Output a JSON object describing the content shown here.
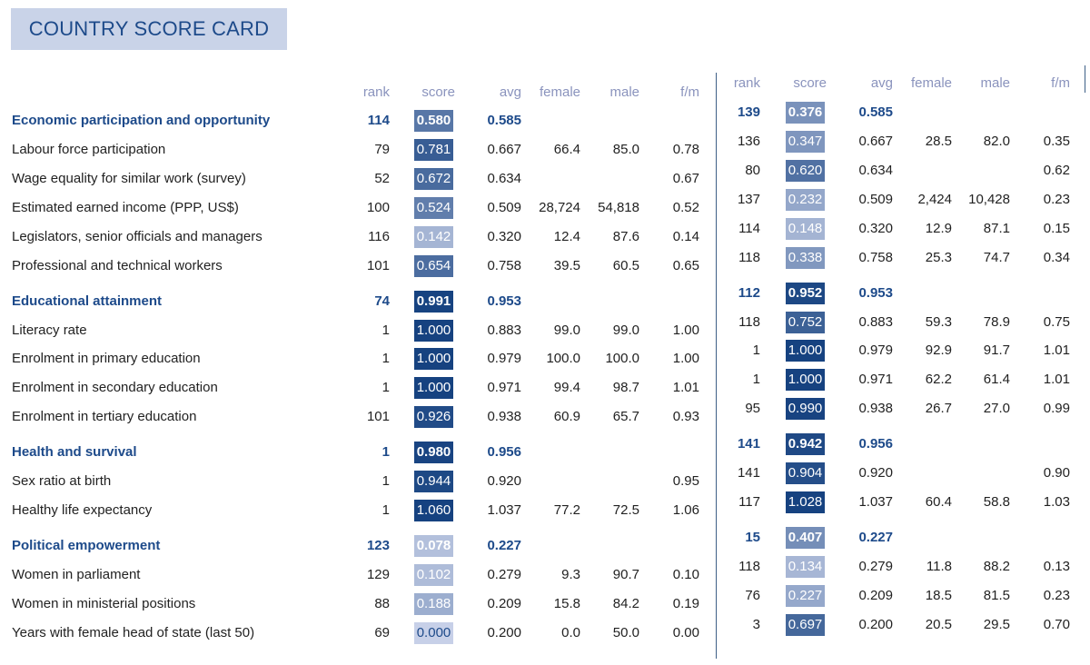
{
  "title": "COUNTRY SCORE CARD",
  "headers": {
    "left": [
      "rank",
      "score",
      "avg",
      "female",
      "male",
      "f/m"
    ],
    "right": [
      "rank",
      "score",
      "avg",
      "female",
      "male",
      "f/m"
    ]
  },
  "rows": [
    {
      "label": "Economic participation and opportunity",
      "cat": true,
      "left": {
        "rank": "114",
        "score": "0.580",
        "avg": "0.585",
        "female": "",
        "male": "",
        "fm": "",
        "level": 0.58
      },
      "right": {
        "rank": "139",
        "score": "0.376",
        "avg": "0.585",
        "female": "",
        "male": "",
        "fm": "",
        "level": 0.376
      }
    },
    {
      "label": "Labour force participation",
      "left": {
        "rank": "79",
        "score": "0.781",
        "avg": "0.667",
        "female": "66.4",
        "male": "85.0",
        "fm": "0.78",
        "level": 0.781
      },
      "right": {
        "rank": "136",
        "score": "0.347",
        "avg": "0.667",
        "female": "28.5",
        "male": "82.0",
        "fm": "0.35",
        "level": 0.347
      }
    },
    {
      "label": "Wage equality for similar work (survey)",
      "left": {
        "rank": "52",
        "score": "0.672",
        "avg": "0.634",
        "female": "",
        "male": "",
        "fm": "0.67",
        "level": 0.672
      },
      "right": {
        "rank": "80",
        "score": "0.620",
        "avg": "0.634",
        "female": "",
        "male": "",
        "fm": "0.62",
        "level": 0.62
      }
    },
    {
      "label": "Estimated earned income (PPP, US$)",
      "left": {
        "rank": "100",
        "score": "0.524",
        "avg": "0.509",
        "female": "28,724",
        "male": "54,818",
        "fm": "0.52",
        "level": 0.524
      },
      "right": {
        "rank": "137",
        "score": "0.232",
        "avg": "0.509",
        "female": "2,424",
        "male": "10,428",
        "fm": "0.23",
        "level": 0.232
      }
    },
    {
      "label": "Legislators, senior officials and managers",
      "left": {
        "rank": "116",
        "score": "0.142",
        "avg": "0.320",
        "female": "12.4",
        "male": "87.6",
        "fm": "0.14",
        "level": 0.142
      },
      "right": {
        "rank": "114",
        "score": "0.148",
        "avg": "0.320",
        "female": "12.9",
        "male": "87.1",
        "fm": "0.15",
        "level": 0.148
      }
    },
    {
      "label": "Professional and technical workers",
      "left": {
        "rank": "101",
        "score": "0.654",
        "avg": "0.758",
        "female": "39.5",
        "male": "60.5",
        "fm": "0.65",
        "level": 0.654
      },
      "right": {
        "rank": "118",
        "score": "0.338",
        "avg": "0.758",
        "female": "25.3",
        "male": "74.7",
        "fm": "0.34",
        "level": 0.338
      }
    },
    {
      "label": "Educational attainment",
      "cat": true,
      "left": {
        "rank": "74",
        "score": "0.991",
        "avg": "0.953",
        "female": "",
        "male": "",
        "fm": "",
        "level": 0.991
      },
      "right": {
        "rank": "112",
        "score": "0.952",
        "avg": "0.953",
        "female": "",
        "male": "",
        "fm": "",
        "level": 0.952
      }
    },
    {
      "label": "Literacy rate",
      "left": {
        "rank": "1",
        "score": "1.000",
        "avg": "0.883",
        "female": "99.0",
        "male": "99.0",
        "fm": "1.00",
        "level": 1.0
      },
      "right": {
        "rank": "118",
        "score": "0.752",
        "avg": "0.883",
        "female": "59.3",
        "male": "78.9",
        "fm": "0.75",
        "level": 0.752
      }
    },
    {
      "label": "Enrolment in primary education",
      "left": {
        "rank": "1",
        "score": "1.000",
        "avg": "0.979",
        "female": "100.0",
        "male": "100.0",
        "fm": "1.00",
        "level": 1.0
      },
      "right": {
        "rank": "1",
        "score": "1.000",
        "avg": "0.979",
        "female": "92.9",
        "male": "91.7",
        "fm": "1.01",
        "level": 1.0
      }
    },
    {
      "label": "Enrolment in secondary education",
      "left": {
        "rank": "1",
        "score": "1.000",
        "avg": "0.971",
        "female": "99.4",
        "male": "98.7",
        "fm": "1.01",
        "level": 1.0
      },
      "right": {
        "rank": "1",
        "score": "1.000",
        "avg": "0.971",
        "female": "62.2",
        "male": "61.4",
        "fm": "1.01",
        "level": 1.0
      }
    },
    {
      "label": "Enrolment in tertiary education",
      "left": {
        "rank": "101",
        "score": "0.926",
        "avg": "0.938",
        "female": "60.9",
        "male": "65.7",
        "fm": "0.93",
        "level": 0.926
      },
      "right": {
        "rank": "95",
        "score": "0.990",
        "avg": "0.938",
        "female": "26.7",
        "male": "27.0",
        "fm": "0.99",
        "level": 0.99
      }
    },
    {
      "label": "Health and survival",
      "cat": true,
      "left": {
        "rank": "1",
        "score": "0.980",
        "avg": "0.956",
        "female": "",
        "male": "",
        "fm": "",
        "level": 0.98
      },
      "right": {
        "rank": "141",
        "score": "0.942",
        "avg": "0.956",
        "female": "",
        "male": "",
        "fm": "",
        "level": 0.942
      }
    },
    {
      "label": "Sex ratio at birth",
      "left": {
        "rank": "1",
        "score": "0.944",
        "avg": "0.920",
        "female": "",
        "male": "",
        "fm": "0.95",
        "level": 0.944
      },
      "right": {
        "rank": "141",
        "score": "0.904",
        "avg": "0.920",
        "female": "",
        "male": "",
        "fm": "0.90",
        "level": 0.904
      }
    },
    {
      "label": "Healthy life expectancy",
      "left": {
        "rank": "1",
        "score": "1.060",
        "avg": "1.037",
        "female": "77.2",
        "male": "72.5",
        "fm": "1.06",
        "level": 1.0
      },
      "right": {
        "rank": "117",
        "score": "1.028",
        "avg": "1.037",
        "female": "60.4",
        "male": "58.8",
        "fm": "1.03",
        "level": 1.0
      }
    },
    {
      "label": "Political empowerment",
      "cat": true,
      "left": {
        "rank": "123",
        "score": "0.078",
        "avg": "0.227",
        "female": "",
        "male": "",
        "fm": "",
        "level": 0.078
      },
      "right": {
        "rank": "15",
        "score": "0.407",
        "avg": "0.227",
        "female": "",
        "male": "",
        "fm": "",
        "level": 0.407
      }
    },
    {
      "label": "Women in parliament",
      "left": {
        "rank": "129",
        "score": "0.102",
        "avg": "0.279",
        "female": "9.3",
        "male": "90.7",
        "fm": "0.10",
        "level": 0.102
      },
      "right": {
        "rank": "118",
        "score": "0.134",
        "avg": "0.279",
        "female": "11.8",
        "male": "88.2",
        "fm": "0.13",
        "level": 0.134
      }
    },
    {
      "label": "Women in ministerial positions",
      "left": {
        "rank": "88",
        "score": "0.188",
        "avg": "0.209",
        "female": "15.8",
        "male": "84.2",
        "fm": "0.19",
        "level": 0.188
      },
      "right": {
        "rank": "76",
        "score": "0.227",
        "avg": "0.209",
        "female": "18.5",
        "male": "81.5",
        "fm": "0.23",
        "level": 0.227
      }
    },
    {
      "label": "Years with female head of state (last 50)",
      "left": {
        "rank": "69",
        "score": "0.000",
        "avg": "0.200",
        "female": "0.0",
        "male": "50.0",
        "fm": "0.00",
        "level": 0.0
      },
      "right": {
        "rank": "3",
        "score": "0.697",
        "avg": "0.200",
        "female": "20.5",
        "male": "29.5",
        "fm": "0.70",
        "level": 0.697
      }
    }
  ]
}
